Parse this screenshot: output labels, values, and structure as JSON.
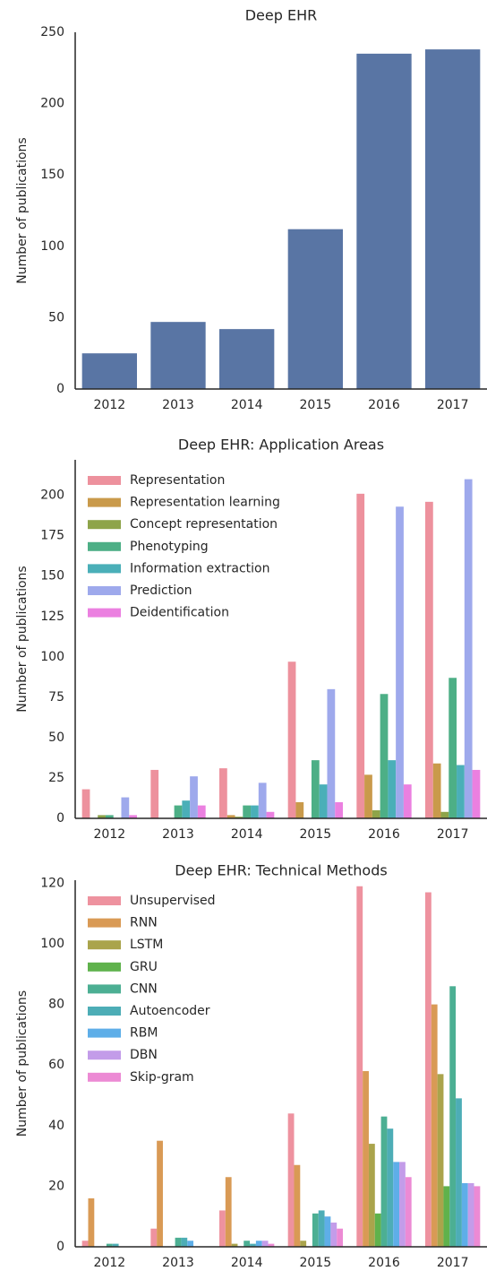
{
  "chart_data": [
    {
      "type": "bar",
      "title": "Deep EHR",
      "ylabel": "Number of publications",
      "categories": [
        "2012",
        "2013",
        "2014",
        "2015",
        "2016",
        "2017"
      ],
      "values": [
        25,
        47,
        42,
        112,
        235,
        238
      ],
      "color": "#5975a4",
      "ylim": [
        0,
        250
      ],
      "yticks": [
        0,
        50,
        100,
        150,
        200,
        250
      ]
    },
    {
      "type": "bar",
      "title": "Deep EHR: Application Areas",
      "ylabel": "Number of publications",
      "categories": [
        "2012",
        "2013",
        "2014",
        "2015",
        "2016",
        "2017"
      ],
      "series": [
        {
          "name": "Representation",
          "color": "#ed919d",
          "values": [
            18,
            30,
            31,
            97,
            201,
            196
          ]
        },
        {
          "name": "Representation learning",
          "color": "#c99a4b",
          "values": [
            0,
            0,
            2,
            10,
            27,
            34
          ]
        },
        {
          "name": "Concept representation",
          "color": "#8ea44a",
          "values": [
            2,
            0,
            1,
            0,
            5,
            4
          ]
        },
        {
          "name": "Phenotyping",
          "color": "#4daf86",
          "values": [
            2,
            8,
            8,
            36,
            77,
            87
          ]
        },
        {
          "name": "Information extraction",
          "color": "#4aafb8",
          "values": [
            0,
            11,
            8,
            21,
            36,
            33
          ]
        },
        {
          "name": "Prediction",
          "color": "#9ea9ec",
          "values": [
            13,
            26,
            22,
            80,
            193,
            210
          ]
        },
        {
          "name": "Deidentification",
          "color": "#eb80e0",
          "values": [
            2,
            8,
            4,
            10,
            21,
            30
          ]
        }
      ],
      "ylim": [
        0,
        222
      ],
      "yticks": [
        0,
        25,
        50,
        75,
        100,
        125,
        150,
        175,
        200
      ],
      "legend": "upper-left"
    },
    {
      "type": "bar",
      "title": "Deep EHR: Technical Methods",
      "ylabel": "Number of publications",
      "categories": [
        "2012",
        "2013",
        "2014",
        "2015",
        "2016",
        "2017"
      ],
      "series": [
        {
          "name": "Unsupervised",
          "color": "#ee929f",
          "values": [
            2,
            6,
            12,
            44,
            119,
            117
          ]
        },
        {
          "name": "RNN",
          "color": "#d99a55",
          "values": [
            16,
            35,
            23,
            27,
            58,
            80
          ]
        },
        {
          "name": "LSTM",
          "color": "#aaa44c",
          "values": [
            0,
            0,
            1,
            2,
            34,
            57
          ]
        },
        {
          "name": "GRU",
          "color": "#5fb24c",
          "values": [
            0,
            0,
            0,
            0,
            11,
            20
          ]
        },
        {
          "name": "CNN",
          "color": "#4caf93",
          "values": [
            1,
            3,
            2,
            11,
            43,
            86
          ]
        },
        {
          "name": "Autoencoder",
          "color": "#4dadb6",
          "values": [
            1,
            3,
            1,
            12,
            39,
            49
          ]
        },
        {
          "name": "RBM",
          "color": "#5eaee8",
          "values": [
            0,
            2,
            2,
            10,
            28,
            21
          ]
        },
        {
          "name": "DBN",
          "color": "#c39ce9",
          "values": [
            0,
            0,
            2,
            8,
            28,
            21
          ]
        },
        {
          "name": "Skip-gram",
          "color": "#ec8ad4",
          "values": [
            0,
            0,
            1,
            6,
            23,
            20
          ]
        }
      ],
      "ylim": [
        0,
        121
      ],
      "yticks": [
        0,
        20,
        40,
        60,
        80,
        100,
        120
      ],
      "legend": "upper-left"
    }
  ]
}
